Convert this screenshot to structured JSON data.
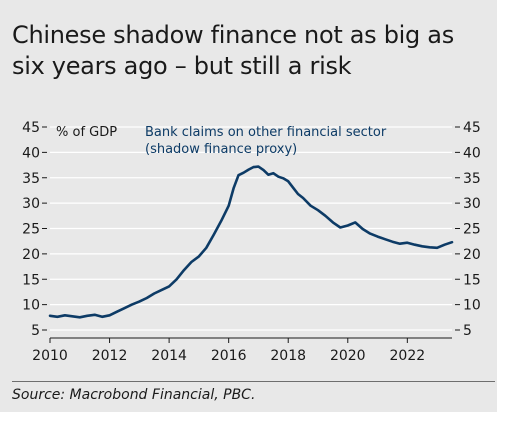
{
  "title": "Chinese shadow finance not as big as six years ago – but still a risk",
  "source": "Source: Macrobond Financial, PBC.",
  "colors": {
    "background": "#e8e8e8",
    "series": "#0d3b66",
    "grid": "#ffffff",
    "text": "#1a1a1a"
  },
  "chart_data": {
    "type": "line",
    "ylabel_left": "% of GDP",
    "xlim": [
      2010,
      2023.5
    ],
    "ylim": [
      5,
      45
    ],
    "y_ticks": [
      5,
      10,
      15,
      20,
      25,
      30,
      35,
      40,
      45
    ],
    "x_ticks": [
      2010,
      2012,
      2014,
      2016,
      2018,
      2020,
      2022
    ],
    "grid": "horizontal",
    "series": [
      {
        "name": "Bank claims on other financial sector (shadow finance proxy)",
        "x": [
          2010.0,
          2010.25,
          2010.5,
          2010.75,
          2011.0,
          2011.25,
          2011.5,
          2011.75,
          2012.0,
          2012.25,
          2012.5,
          2012.75,
          2013.0,
          2013.25,
          2013.5,
          2013.75,
          2014.0,
          2014.25,
          2014.5,
          2014.75,
          2015.0,
          2015.25,
          2015.5,
          2015.75,
          2016.0,
          2016.17,
          2016.33,
          2016.5,
          2016.67,
          2016.83,
          2017.0,
          2017.17,
          2017.33,
          2017.5,
          2017.67,
          2017.83,
          2018.0,
          2018.17,
          2018.33,
          2018.5,
          2018.75,
          2019.0,
          2019.25,
          2019.5,
          2019.75,
          2020.0,
          2020.25,
          2020.5,
          2020.75,
          2021.0,
          2021.25,
          2021.5,
          2021.75,
          2022.0,
          2022.25,
          2022.5,
          2022.75,
          2023.0,
          2023.25,
          2023.5
        ],
        "y": [
          7.8,
          7.6,
          7.9,
          7.7,
          7.5,
          7.8,
          8.0,
          7.6,
          7.9,
          8.6,
          9.3,
          10.0,
          10.6,
          11.3,
          12.2,
          12.9,
          13.6,
          15.0,
          16.8,
          18.4,
          19.5,
          21.2,
          23.8,
          26.5,
          29.5,
          33.0,
          35.5,
          36.0,
          36.6,
          37.1,
          37.2,
          36.5,
          35.6,
          35.9,
          35.2,
          34.9,
          34.3,
          33.0,
          31.8,
          31.0,
          29.5,
          28.6,
          27.5,
          26.2,
          25.2,
          25.6,
          26.2,
          24.9,
          24.0,
          23.4,
          22.9,
          22.4,
          22.0,
          22.2,
          21.8,
          21.5,
          21.3,
          21.2,
          21.8,
          22.3
        ]
      }
    ],
    "legend_lines": [
      "Bank claims on other financial sector",
      "(shadow finance proxy)"
    ]
  }
}
